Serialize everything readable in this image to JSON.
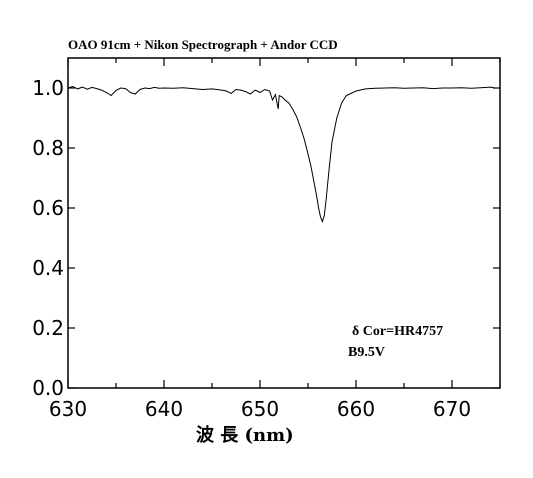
{
  "chart_data": {
    "type": "line",
    "title": "OAO 91cm + Nikon Spectrograph + Andor CCD",
    "xlabel": "波 長 (nm)",
    "ylabel": "",
    "xlim": [
      630,
      675
    ],
    "ylim": [
      0.0,
      1.1
    ],
    "x_ticks": [
      630,
      640,
      650,
      660,
      670
    ],
    "x_tick_labels": [
      "630",
      "640",
      "650",
      "660",
      "670"
    ],
    "y_ticks": [
      0.0,
      0.2,
      0.4,
      0.6,
      0.8,
      1.0
    ],
    "y_tick_labels": [
      "0.0",
      "0.2",
      "0.4",
      "0.6",
      "0.8",
      "1.0"
    ],
    "grid": false,
    "annotations": [
      "δ Cor=HR4757",
      "B9.5V"
    ],
    "series": [
      {
        "x": [
          630.0,
          630.5,
          631.0,
          631.5,
          632.0,
          632.5,
          633.0,
          633.5,
          634.0,
          634.5,
          635.0,
          635.5,
          636.0,
          636.5,
          637.0,
          637.5,
          638.0,
          638.5,
          639.0,
          639.5,
          640.0,
          641.0,
          642.0,
          643.0,
          644.0,
          645.0,
          646.0,
          646.5,
          647.0,
          647.5,
          648.0,
          648.5,
          649.0,
          649.5,
          650.0,
          650.5,
          651.0,
          651.3,
          651.6,
          651.9,
          652.0,
          652.3,
          652.6,
          653.0,
          653.4,
          653.8,
          654.2,
          654.6,
          655.0,
          655.3,
          655.6,
          655.9,
          656.1,
          656.3,
          656.5,
          656.7,
          656.9,
          657.2,
          657.5,
          658.0,
          658.5,
          659.0,
          660.0,
          661.0,
          662.0,
          663.0,
          664.0,
          665.0,
          666.0,
          667.0,
          668.0,
          669.0,
          670.0,
          671.0,
          672.0,
          673.0,
          674.0,
          674.5
        ],
        "y": [
          1.0,
          1.005,
          0.997,
          1.003,
          0.996,
          1.002,
          0.998,
          0.993,
          0.985,
          0.975,
          0.992,
          1.0,
          0.998,
          0.985,
          0.98,
          0.995,
          1.0,
          0.998,
          1.002,
          0.999,
          1.0,
          0.999,
          1.001,
          0.998,
          0.995,
          0.997,
          0.993,
          0.99,
          0.982,
          0.995,
          0.993,
          0.988,
          0.98,
          0.993,
          0.985,
          0.995,
          0.99,
          0.96,
          0.978,
          0.93,
          0.975,
          0.97,
          0.96,
          0.95,
          0.93,
          0.905,
          0.87,
          0.83,
          0.78,
          0.74,
          0.69,
          0.64,
          0.6,
          0.57,
          0.555,
          0.575,
          0.63,
          0.73,
          0.82,
          0.9,
          0.95,
          0.975,
          0.99,
          0.997,
          0.999,
          1.0,
          1.001,
          0.999,
          1.0,
          1.001,
          0.998,
          1.0,
          1.0,
          1.001,
          0.999,
          1.001,
          1.003,
          1.0
        ]
      }
    ]
  }
}
